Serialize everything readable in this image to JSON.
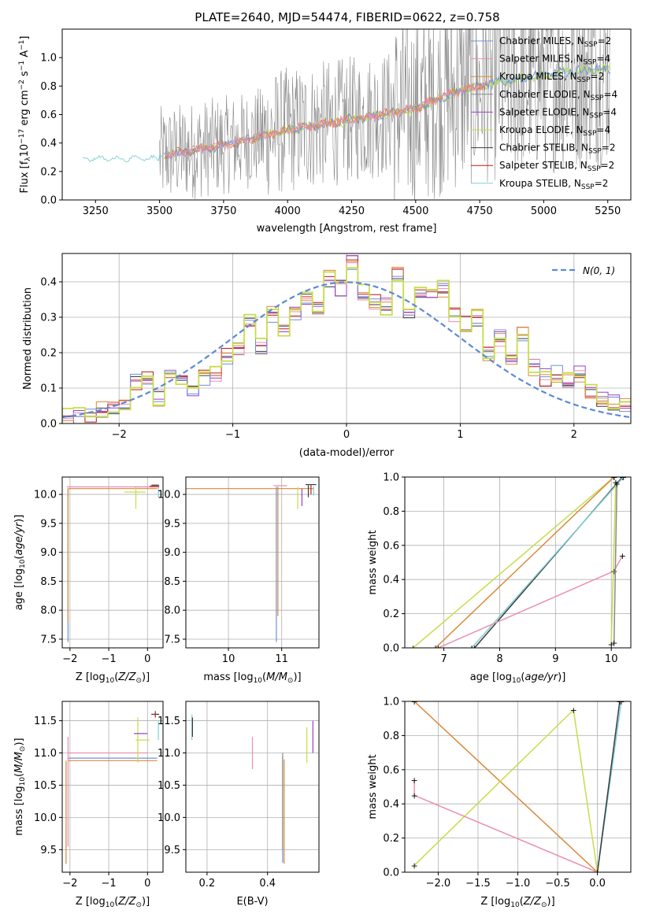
{
  "title": "PLATE=2640, MJD=54474, FIBERID=0622, z=0.758",
  "colors": {
    "Chabrier MILES": "#6f8fdc",
    "Salpeter MILES": "#e98fb2",
    "Kroupa MILES": "#d98a3a",
    "Chabrier ELODIE": "#8a8a8a",
    "Salpeter ELODIE": "#9b3fc8",
    "Kroupa ELODIE": "#c8dc4a",
    "Chabrier STELIB": "#3c3c3c",
    "Salpeter STELIB": "#c01818",
    "Kroupa STELIB": "#7fcfd6",
    "normal": "#5b8ad6"
  },
  "chart_data": [
    {
      "id": "spectrum",
      "type": "line",
      "xlabel": "wavelength [Angstrom, rest frame]",
      "ylabel": "Flux [f",
      "ylabel_parts": [
        "Flux [f",
        "λ",
        "10",
        "−17",
        " erg cm",
        "−2",
        " s",
        "−1",
        " A",
        "−1",
        "]"
      ],
      "xlim": [
        3120,
        5340
      ],
      "ylim": [
        0,
        1.2
      ],
      "xticks": [
        "3250",
        "3500",
        "3750",
        "4000",
        "4250",
        "4500",
        "4750",
        "5000",
        "5250"
      ],
      "xtick_values": [
        3250,
        3500,
        3750,
        4000,
        4250,
        4500,
        4750,
        5000,
        5250
      ],
      "yticks": [
        "0.0",
        "0.2",
        "0.4",
        "0.6",
        "0.8",
        "1.0"
      ],
      "ytick_values": [
        0.0,
        0.2,
        0.4,
        0.6,
        0.8,
        1.0
      ],
      "legend_position": "top-right",
      "legend": [
        {
          "imf": "Chabrier",
          "lib": "MILES",
          "n": "2"
        },
        {
          "imf": "Salpeter",
          "lib": "MILES",
          "n": "4"
        },
        {
          "imf": "Kroupa",
          "lib": "MILES",
          "n": "2"
        },
        {
          "imf": "Chabrier",
          "lib": "ELODIE",
          "n": "4"
        },
        {
          "imf": "Salpeter",
          "lib": "ELODIE",
          "n": "4"
        },
        {
          "imf": "Kroupa",
          "lib": "ELODIE",
          "n": "4"
        },
        {
          "imf": "Chabrier",
          "lib": "STELIB",
          "n": "2"
        },
        {
          "imf": "Salpeter",
          "lib": "STELIB",
          "n": "2"
        },
        {
          "imf": "Kroupa",
          "lib": "STELIB",
          "n": "2"
        }
      ],
      "model_trend": {
        "x": [
          3200,
          3300,
          3400,
          3500,
          3600,
          3700,
          3800,
          3900,
          4000,
          4100,
          4200,
          4300,
          4400,
          4500,
          4600,
          4700,
          4800,
          4900,
          5000,
          5100,
          5200
        ],
        "y": [
          0.29,
          0.3,
          0.3,
          0.31,
          0.34,
          0.37,
          0.4,
          0.45,
          0.49,
          0.52,
          0.55,
          0.58,
          0.61,
          0.64,
          0.72,
          0.78,
          0.82,
          0.85,
          0.88,
          0.9,
          0.92
        ]
      },
      "grid": false
    },
    {
      "id": "residuals",
      "type": "histogram",
      "xlabel": "(data-model)/error",
      "ylabel": "Normed distribution",
      "xlim": [
        -2.5,
        2.5
      ],
      "ylim": [
        0,
        0.48
      ],
      "xticks": [
        "−2",
        "−1",
        "0",
        "1",
        "2"
      ],
      "xtick_values": [
        -2,
        -1,
        0,
        1,
        2
      ],
      "yticks": [
        "0.0",
        "0.1",
        "0.2",
        "0.3",
        "0.4"
      ],
      "ytick_values": [
        0,
        0.1,
        0.2,
        0.3,
        0.4
      ],
      "legend": [
        "N(0, 1)"
      ],
      "legend_position": "top-right",
      "bin_edges": [
        -2.5,
        -2.4,
        -2.3,
        -2.2,
        -2.1,
        -2.0,
        -1.9,
        -1.8,
        -1.7,
        -1.6,
        -1.5,
        -1.4,
        -1.3,
        -1.2,
        -1.1,
        -1.0,
        -0.9,
        -0.8,
        -0.7,
        -0.6,
        -0.5,
        -0.4,
        -0.3,
        -0.2,
        -0.1,
        0.0,
        0.1,
        0.2,
        0.3,
        0.4,
        0.5,
        0.6,
        0.7,
        0.8,
        0.9,
        1.0,
        1.1,
        1.2,
        1.3,
        1.4,
        1.5,
        1.6,
        1.7,
        1.8,
        1.9,
        2.0,
        2.1,
        2.2,
        2.3,
        2.4,
        2.5
      ],
      "counts": [
        0.02,
        0.03,
        0.02,
        0.04,
        0.04,
        0.06,
        0.12,
        0.13,
        0.07,
        0.15,
        0.12,
        0.1,
        0.13,
        0.14,
        0.19,
        0.21,
        0.3,
        0.22,
        0.31,
        0.26,
        0.31,
        0.36,
        0.33,
        0.41,
        0.38,
        0.45,
        0.37,
        0.34,
        0.33,
        0.42,
        0.32,
        0.38,
        0.36,
        0.38,
        0.31,
        0.28,
        0.3,
        0.2,
        0.24,
        0.17,
        0.25,
        0.16,
        0.13,
        0.14,
        0.12,
        0.14,
        0.09,
        0.07,
        0.06,
        0.05
      ],
      "normal": {
        "mu": 0,
        "sigma": 1
      },
      "grid": true
    },
    {
      "id": "age-vs-z",
      "type": "scatter",
      "xlabel": "Z [log",
      "xlabel_parts": [
        "Z [log",
        "10",
        "(",
        "Z/Z",
        "⊙",
        ")]"
      ],
      "ylabel_parts": [
        "age  [log",
        "10",
        "(",
        "age/yr",
        ")]"
      ],
      "xlim": [
        -2.2,
        0.4
      ],
      "ylim": [
        7.35,
        10.3
      ],
      "xticks": [
        "−2",
        "−1",
        "0"
      ],
      "xtick_values": [
        -2,
        -1,
        0
      ],
      "yticks": [
        "7.5",
        "8.0",
        "8.5",
        "9.0",
        "9.5",
        "10.0"
      ],
      "ytick_values": [
        7.5,
        8.0,
        8.5,
        9.0,
        9.5,
        10.0
      ],
      "grid": true
    },
    {
      "id": "age-vs-mass",
      "type": "scatter",
      "xlabel_parts": [
        "mass [log",
        "10",
        "(",
        "M/M",
        "⊙",
        ")]"
      ],
      "xlim": [
        9.2,
        11.7
      ],
      "ylim": [
        7.35,
        10.3
      ],
      "xticks": [
        "10",
        "11"
      ],
      "xtick_values": [
        10,
        11
      ],
      "yticks": [
        "7.5",
        "8.0",
        "8.5",
        "9.0",
        "9.5",
        "10.0"
      ],
      "ytick_values": [
        7.5,
        8.0,
        8.5,
        9.0,
        9.5,
        10.0
      ],
      "grid": true
    },
    {
      "id": "weight-vs-age",
      "type": "line",
      "xlabel_parts": [
        "age  [log",
        "10",
        "(",
        "age/yr",
        ")]"
      ],
      "ylabel": "mass weight",
      "xlim": [
        6.3,
        10.35
      ],
      "ylim": [
        0,
        1.0
      ],
      "xticks": [
        "7",
        "8",
        "9",
        "10"
      ],
      "xtick_values": [
        7,
        8,
        9,
        10
      ],
      "yticks": [
        "0.0",
        "0.2",
        "0.4",
        "0.6",
        "0.8",
        "1.0"
      ],
      "ytick_values": [
        0,
        0.2,
        0.4,
        0.6,
        0.8,
        1.0
      ],
      "grid": true
    },
    {
      "id": "mass-vs-z",
      "type": "scatter",
      "xlabel_parts": [
        "Z [log",
        "10",
        "(",
        "Z/Z",
        "⊙",
        ")]"
      ],
      "ylabel_parts": [
        "mass [log",
        "10",
        "(",
        "M/M",
        "⊙",
        ")]"
      ],
      "xlim": [
        -2.2,
        0.4
      ],
      "ylim": [
        9.15,
        11.8
      ],
      "xticks": [
        "−2",
        "−1",
        "0"
      ],
      "xtick_values": [
        -2,
        -1,
        0
      ],
      "yticks": [
        "9.5",
        "10.0",
        "10.5",
        "11.0",
        "11.5"
      ],
      "ytick_values": [
        9.5,
        10.0,
        10.5,
        11.0,
        11.5
      ],
      "grid": true
    },
    {
      "id": "mass-vs-ebv",
      "type": "scatter",
      "xlabel": "E(B-V)",
      "xlim": [
        0.13,
        0.57
      ],
      "ylim": [
        9.15,
        11.8
      ],
      "xticks": [
        "0.2",
        "0.4"
      ],
      "xtick_values": [
        0.2,
        0.4
      ],
      "yticks": [
        "9.5",
        "10.0",
        "10.5",
        "11.0",
        "11.5"
      ],
      "ytick_values": [
        9.5,
        10.0,
        10.5,
        11.0,
        11.5
      ],
      "grid": true
    },
    {
      "id": "weight-vs-z",
      "type": "line",
      "xlabel_parts": [
        "Z [log",
        "10",
        "(",
        "Z/Z",
        "⊙",
        ")]"
      ],
      "ylabel": "mass weight",
      "xlim": [
        -2.42,
        0.42
      ],
      "ylim": [
        0,
        1.0
      ],
      "xticks": [
        "−2.0",
        "−1.5",
        "−1.0",
        "−0.5",
        "0.0"
      ],
      "xtick_values": [
        -2.0,
        -1.5,
        -1.0,
        -0.5,
        0.0
      ],
      "yticks": [
        "0.0",
        "0.2",
        "0.4",
        "0.6",
        "0.8",
        "1.0"
      ],
      "ytick_values": [
        0,
        0.2,
        0.4,
        0.6,
        0.8,
        1.0
      ],
      "grid": true
    }
  ]
}
